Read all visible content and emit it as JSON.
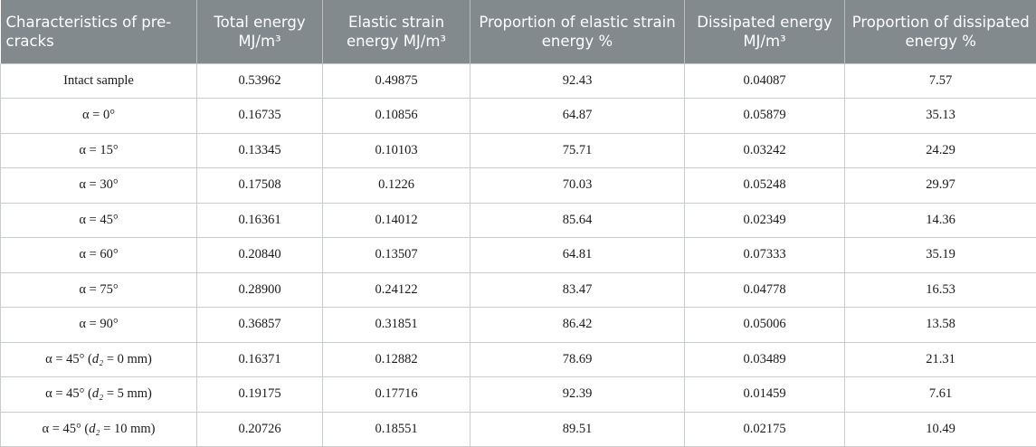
{
  "table": {
    "headers": [
      "Characteristics of pre-cracks",
      "Total energy MJ/m³",
      "Elastic strain energy MJ/m³",
      "Proportion of elastic strain energy %",
      "Dissipated energy MJ/m³",
      "Proportion of dissipated energy %"
    ],
    "rows": [
      {
        "label": "Intact sample",
        "total": "0.53962",
        "elastic": "0.49875",
        "elastic_pct": "92.43",
        "dissipated": "0.04087",
        "dissipated_pct": "7.57"
      },
      {
        "label": "α = 0°",
        "total": "0.16735",
        "elastic": "0.10856",
        "elastic_pct": "64.87",
        "dissipated": "0.05879",
        "dissipated_pct": "35.13"
      },
      {
        "label": "α = 15°",
        "total": "0.13345",
        "elastic": "0.10103",
        "elastic_pct": "75.71",
        "dissipated": "0.03242",
        "dissipated_pct": "24.29"
      },
      {
        "label": "α = 30°",
        "total": "0.17508",
        "elastic": "0.1226",
        "elastic_pct": "70.03",
        "dissipated": "0.05248",
        "dissipated_pct": "29.97"
      },
      {
        "label": "α = 45°",
        "total": "0.16361",
        "elastic": "0.14012",
        "elastic_pct": "85.64",
        "dissipated": "0.02349",
        "dissipated_pct": "14.36"
      },
      {
        "label": "α = 60°",
        "total": "0.20840",
        "elastic": "0.13507",
        "elastic_pct": "64.81",
        "dissipated": "0.07333",
        "dissipated_pct": "35.19"
      },
      {
        "label": "α = 75°",
        "total": "0.28900",
        "elastic": "0.24122",
        "elastic_pct": "83.47",
        "dissipated": "0.04778",
        "dissipated_pct": "16.53"
      },
      {
        "label": "α = 90°",
        "total": "0.36857",
        "elastic": "0.31851",
        "elastic_pct": "86.42",
        "dissipated": "0.05006",
        "dissipated_pct": "13.58"
      },
      {
        "label_pre": "α = 45° (",
        "label_var": "d₂",
        "label_post": " = 0 mm)",
        "total": "0.16371",
        "elastic": "0.12882",
        "elastic_pct": "78.69",
        "dissipated": "0.03489",
        "dissipated_pct": "21.31"
      },
      {
        "label_pre": "α = 45° (",
        "label_var": "d₂",
        "label_post": " = 5 mm)",
        "total": "0.19175",
        "elastic": "0.17716",
        "elastic_pct": "92.39",
        "dissipated": "0.01459",
        "dissipated_pct": "7.61"
      },
      {
        "label_pre": "α = 45° (",
        "label_var": "d₂",
        "label_post": " = 10 mm)",
        "total": "0.20726",
        "elastic": "0.18551",
        "elastic_pct": "89.51",
        "dissipated": "0.02175",
        "dissipated_pct": "10.49"
      }
    ]
  }
}
